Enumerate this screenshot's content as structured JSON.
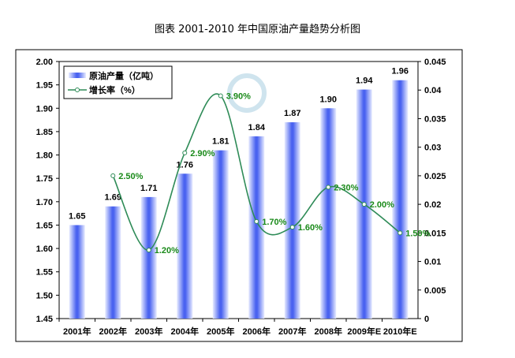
{
  "title": "图表 2001-2010 年中国原油产量趋势分析图",
  "chart_data": {
    "type": "bar+line",
    "categories": [
      "2001年",
      "2002年",
      "2003年",
      "2004年",
      "2005年",
      "2006年",
      "2007年",
      "2008年",
      "2009年E",
      "2010年E"
    ],
    "series": [
      {
        "name": "原油产量（亿吨）",
        "type": "bar",
        "axis": "left",
        "values": [
          1.65,
          1.69,
          1.71,
          1.76,
          1.81,
          1.84,
          1.87,
          1.9,
          1.94,
          1.96
        ],
        "labels": [
          "1.65",
          "1.69",
          "1.71",
          "1.76",
          "1.81",
          "1.84",
          "1.87",
          "1.90",
          "1.94",
          "1.96"
        ]
      },
      {
        "name": "增长率（%）",
        "type": "line",
        "axis": "right",
        "values": [
          null,
          0.025,
          0.012,
          0.029,
          0.039,
          0.017,
          0.016,
          0.023,
          0.02,
          0.015
        ],
        "labels": [
          "",
          "2.50%",
          "1.20%",
          "2.90%",
          "3.90%",
          "1.70%",
          "1.60%",
          "2.30%",
          "2.00%",
          "1.50%"
        ]
      }
    ],
    "ylim_left": [
      1.45,
      2.0
    ],
    "yticks_left": [
      "1.45",
      "1.50",
      "1.55",
      "1.60",
      "1.65",
      "1.70",
      "1.75",
      "1.80",
      "1.85",
      "1.90",
      "1.95",
      "2.00"
    ],
    "ylim_right": [
      0,
      0.045
    ],
    "yticks_right": [
      "0",
      "0.005",
      "0.01",
      "0.015",
      "0.02",
      "0.025",
      "0.03",
      "0.035",
      "0.04",
      "0.045"
    ],
    "legend": "top-left",
    "colors": {
      "bar": "#5b6ff0",
      "line": "#2e8b57",
      "label_green": "#1a8a1a"
    }
  }
}
